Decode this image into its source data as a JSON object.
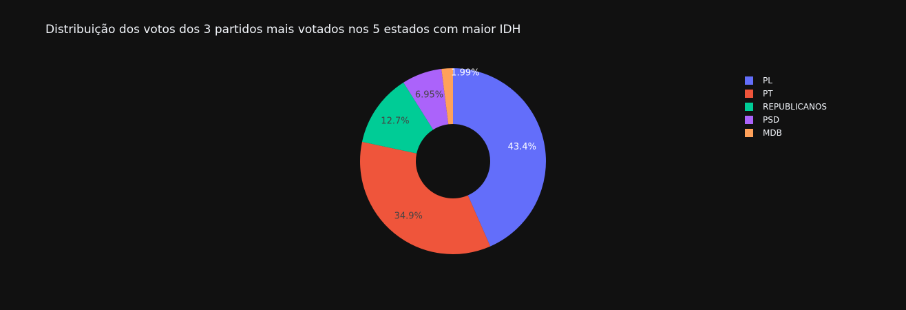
{
  "chart_data": {
    "type": "pie",
    "hole": true,
    "title": "Distribuição dos votos dos 3 partidos mais votados nos 5 estados com maior IDH",
    "labels": [
      "PL",
      "PT",
      "REPUBLICANOS",
      "PSD",
      "MDB"
    ],
    "values": [
      43.4,
      34.9,
      12.7,
      6.95,
      1.99
    ],
    "value_labels": [
      "43.4%",
      "34.9%",
      "12.7%",
      "6.95%",
      "1.99%"
    ],
    "colors": [
      "#636efa",
      "#ef553b",
      "#00cc96",
      "#ab63fa",
      "#ffa15a"
    ],
    "label_colors": [
      "#ffffff",
      "#444444",
      "#444444",
      "#444444",
      "#ffffff"
    ],
    "legend_position": "top-right",
    "direction": "clockwise",
    "start_angle": "top"
  }
}
